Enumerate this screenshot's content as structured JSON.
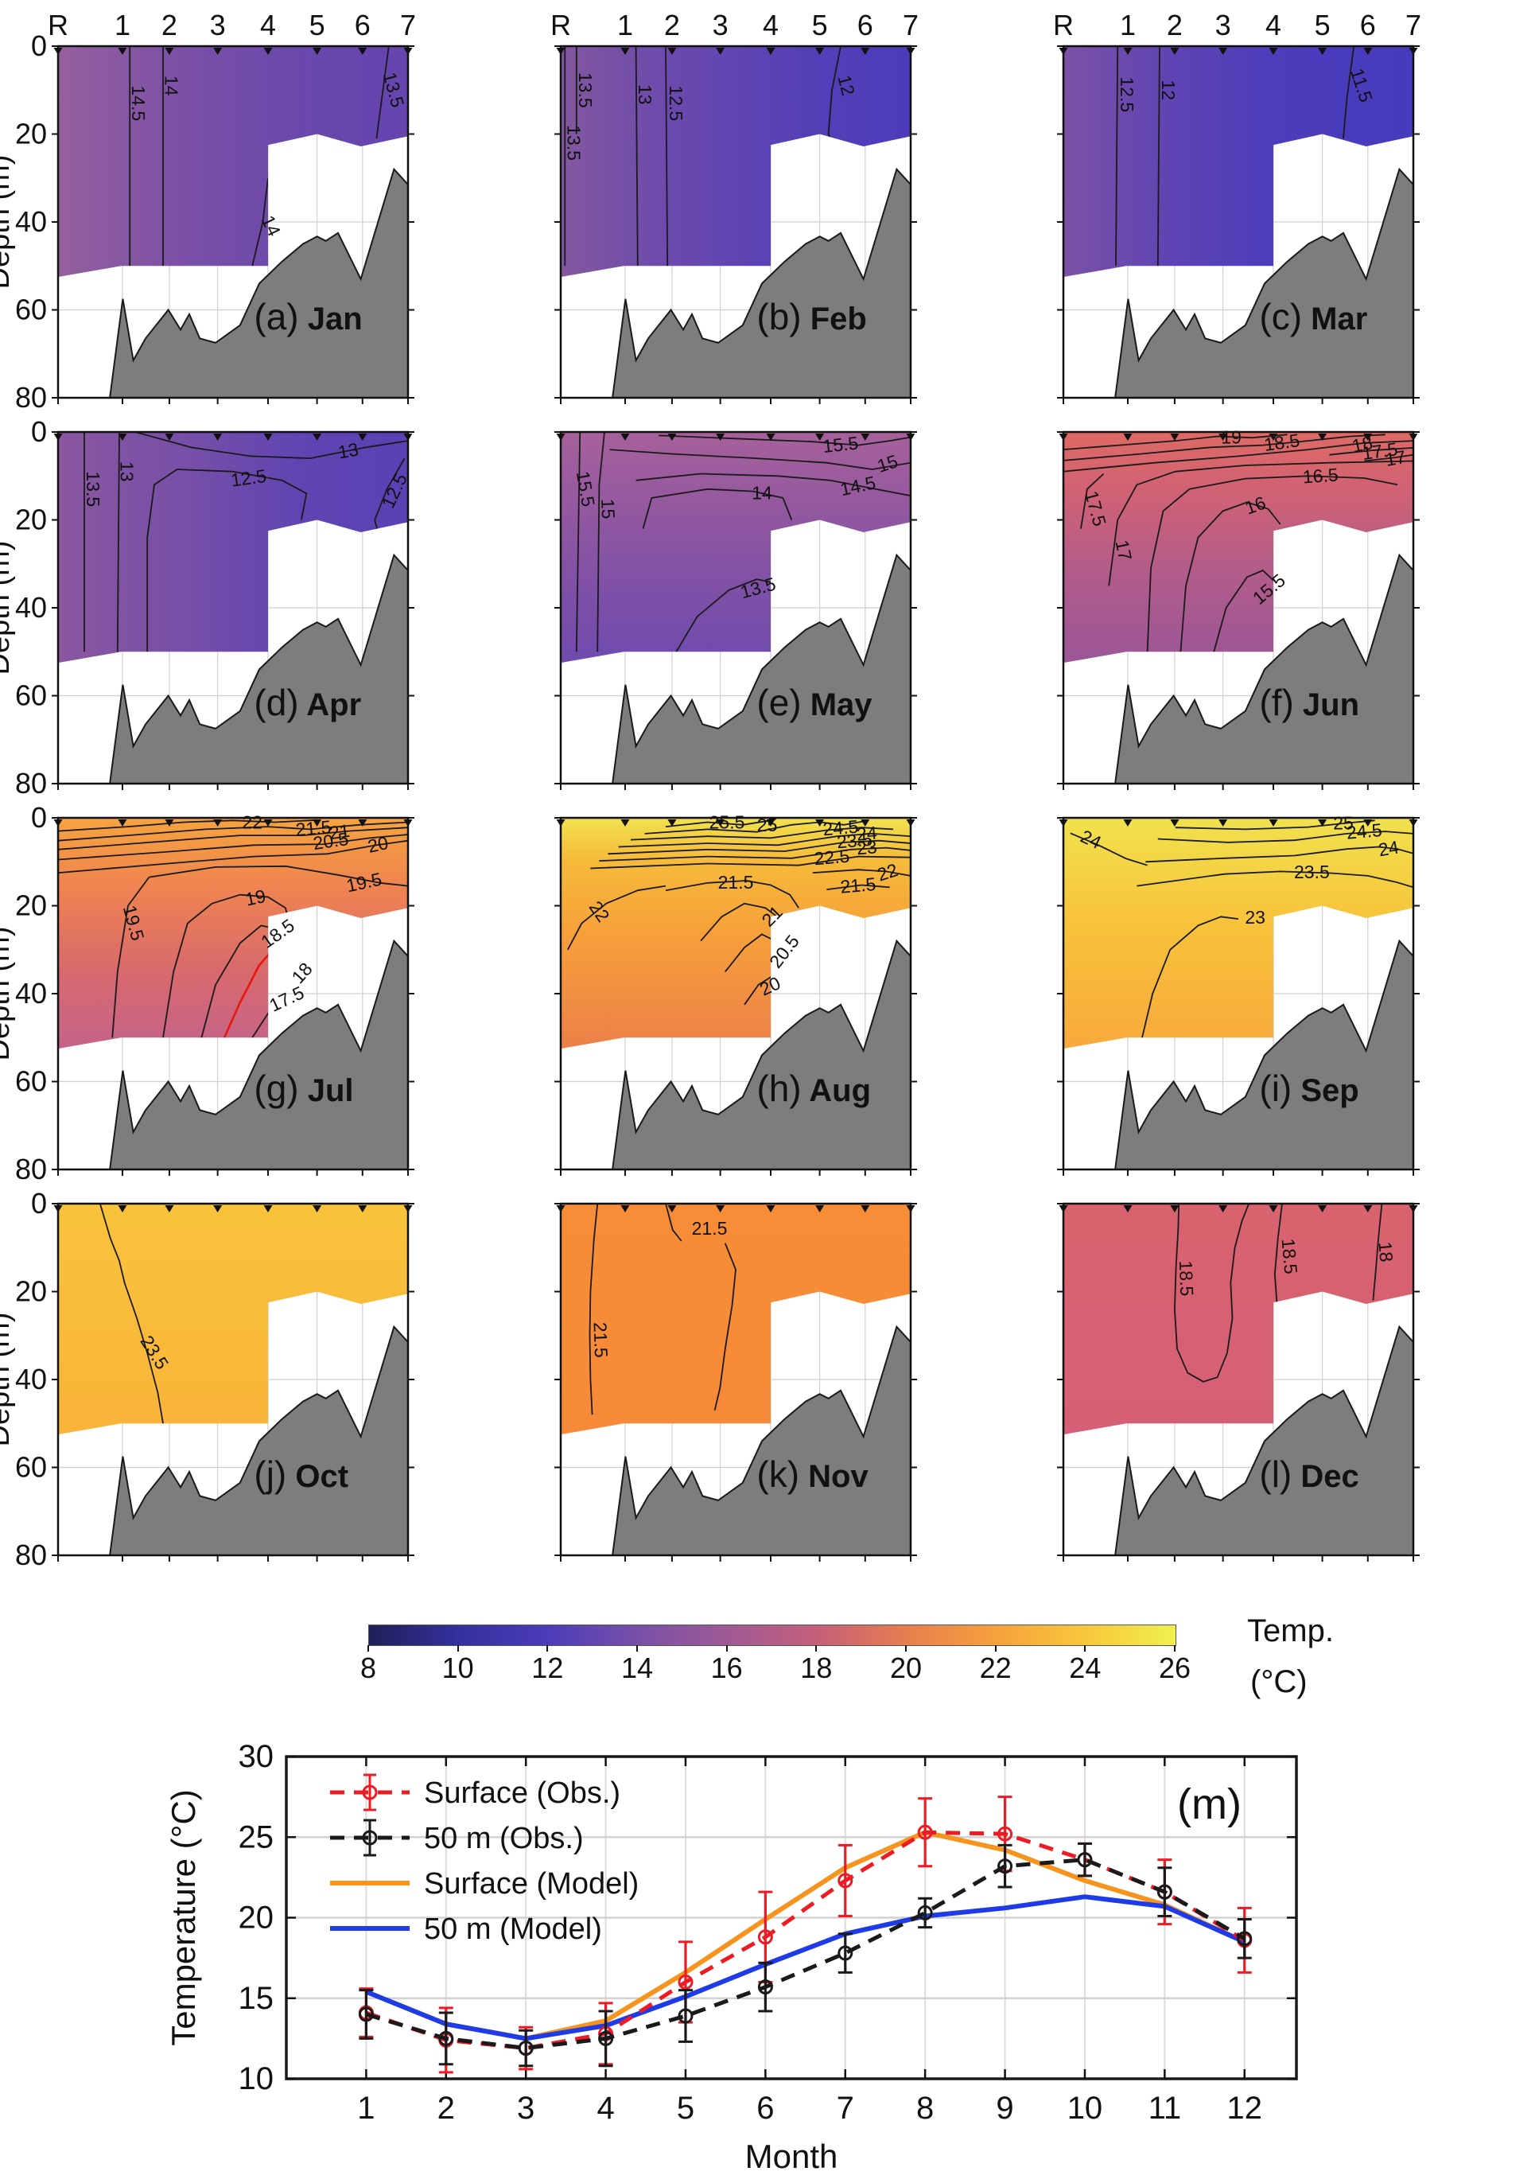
{
  "stations": [
    "R",
    "1",
    "2",
    "3",
    "4",
    "5",
    "6",
    "7"
  ],
  "depth_axis": {
    "label": "Depth (m)",
    "ticks": [
      "0",
      "20",
      "40",
      "60",
      "80"
    ]
  },
  "panels": [
    {
      "id": "(a)",
      "month": "Jan",
      "contours": [
        "14.5",
        "14",
        "13.5",
        "14"
      ],
      "fill": {
        "dir": "h",
        "stops": [
          [
            0,
            "#95609c"
          ],
          [
            0.35,
            "#7b50a6"
          ],
          [
            0.75,
            "#6847ac"
          ],
          [
            1,
            "#6546af"
          ]
        ]
      }
    },
    {
      "id": "(b)",
      "month": "Feb",
      "contours": [
        "13.5",
        "13.5",
        "13",
        "12.5",
        "12"
      ],
      "fill": {
        "dir": "h",
        "stops": [
          [
            0,
            "#83589f"
          ],
          [
            0.3,
            "#6c4aad"
          ],
          [
            0.7,
            "#5440b6"
          ],
          [
            1,
            "#4b3cba"
          ]
        ]
      }
    },
    {
      "id": "(c)",
      "month": "Mar",
      "contours": [
        "12.5",
        "12",
        "11.5"
      ],
      "fill": {
        "dir": "h",
        "stops": [
          [
            0,
            "#7b52a5"
          ],
          [
            0.3,
            "#5f44b3"
          ],
          [
            0.6,
            "#4c3dba"
          ],
          [
            1,
            "#463bbd"
          ]
        ]
      }
    },
    {
      "id": "(d)",
      "month": "Apr",
      "contours": [
        "13.5",
        "13",
        "13",
        "12.5",
        "12.5"
      ],
      "fill": {
        "dir": "h",
        "stops": [
          [
            0,
            "#8a57a0"
          ],
          [
            0.35,
            "#7750a7"
          ],
          [
            0.7,
            "#5f44b2"
          ],
          [
            1,
            "#5a42b4"
          ]
        ]
      }
    },
    {
      "id": "(e)",
      "month": "May",
      "contours": [
        "15.5",
        "15",
        "15.5",
        "15",
        "14.5",
        "14",
        "13.5"
      ],
      "fill": {
        "dir": "v",
        "stops": [
          [
            0,
            "#a6619a"
          ],
          [
            0.3,
            "#95599f"
          ],
          [
            0.7,
            "#7d50a7"
          ],
          [
            1,
            "#6f4bae"
          ]
        ]
      }
    },
    {
      "id": "(f)",
      "month": "Jun",
      "contours": [
        "19",
        "18.5",
        "18",
        "17.5",
        "17",
        "17.5",
        "17",
        "16.5",
        "16",
        "15.5"
      ],
      "fill": {
        "dir": "v",
        "stops": [
          [
            0,
            "#de6a65"
          ],
          [
            0.25,
            "#d16274"
          ],
          [
            0.6,
            "#b25c89"
          ],
          [
            1,
            "#9b5697"
          ]
        ]
      }
    },
    {
      "id": "(g)",
      "month": "Jul",
      "contours": [
        "22",
        "21.5",
        "21",
        "20.5",
        "20",
        "19.5",
        "19.5",
        "19",
        "18.5",
        "18",
        "17.5"
      ],
      "fill": {
        "dir": "v",
        "stops": [
          [
            0,
            "#f6a43e"
          ],
          [
            0.3,
            "#ef8450"
          ],
          [
            0.65,
            "#d96a6c"
          ],
          [
            1,
            "#c4638a"
          ]
        ]
      }
    },
    {
      "id": "(h)",
      "month": "Aug",
      "contours": [
        "25.5",
        "25",
        "24.5",
        "24",
        "23.5",
        "23",
        "22.5",
        "22",
        "21.5",
        "21.5",
        "22",
        "21",
        "20.5",
        "20"
      ],
      "fill": {
        "dir": "v",
        "stops": [
          [
            0,
            "#f1e24e"
          ],
          [
            0.18,
            "#f6bb3a"
          ],
          [
            0.5,
            "#f7a03a"
          ],
          [
            1,
            "#ec8048"
          ]
        ]
      }
    },
    {
      "id": "(i)",
      "month": "Sep",
      "contours": [
        "24",
        "25",
        "24.5",
        "24",
        "23.5",
        "23"
      ],
      "fill": {
        "dir": "v",
        "stops": [
          [
            0,
            "#f0e24d"
          ],
          [
            0.45,
            "#f8c33a"
          ],
          [
            1,
            "#f8a93c"
          ]
        ]
      }
    },
    {
      "id": "(j)",
      "month": "Oct",
      "contours": [
        "23.5"
      ],
      "fill": {
        "dir": "v",
        "stops": [
          [
            0,
            "#f9c33b"
          ],
          [
            1,
            "#f9b43a"
          ]
        ]
      }
    },
    {
      "id": "(k)",
      "month": "Nov",
      "contours": [
        "21.5",
        "21.5"
      ],
      "fill": {
        "dir": "v",
        "stops": [
          [
            0,
            "#f78d37"
          ],
          [
            1,
            "#f78a38"
          ]
        ]
      }
    },
    {
      "id": "(l)",
      "month": "Dec",
      "contours": [
        "18.5",
        "18.5",
        "18"
      ],
      "fill": {
        "dir": "v",
        "stops": [
          [
            0,
            "#d8626d"
          ],
          [
            1,
            "#d56077"
          ]
        ]
      }
    }
  ],
  "colorbar": {
    "title_line1": "Temp.",
    "title_line2": "(°C)",
    "ticks": [
      "8",
      "10",
      "12",
      "14",
      "16",
      "18",
      "20",
      "22",
      "24",
      "26"
    ],
    "gradient": [
      [
        0,
        "#201f57"
      ],
      [
        0.11,
        "#34309d"
      ],
      [
        0.22,
        "#4b3cb9"
      ],
      [
        0.33,
        "#7650a8"
      ],
      [
        0.44,
        "#9d5a95"
      ],
      [
        0.56,
        "#c66079"
      ],
      [
        0.67,
        "#e87f4e"
      ],
      [
        0.78,
        "#f6a23c"
      ],
      [
        0.89,
        "#f8c83c"
      ],
      [
        1,
        "#eff04e"
      ]
    ]
  },
  "chart_data": {
    "type": "line",
    "title": "(m)",
    "xlabel": "Month",
    "ylabel": "Temperature (°C)",
    "xlim": [
      0,
      12.65
    ],
    "ylim": [
      10,
      30
    ],
    "xticks": [
      1,
      2,
      3,
      4,
      5,
      6,
      7,
      8,
      9,
      10,
      11,
      12
    ],
    "yticks": [
      10,
      15,
      20,
      25,
      30
    ],
    "grid": true,
    "legend_position": "top-left",
    "months": [
      1,
      2,
      3,
      4,
      5,
      6,
      7,
      8,
      9,
      10,
      11,
      12
    ],
    "series": [
      {
        "name": "Surface (Obs.)",
        "color": "#ed1c24",
        "style": "dashed",
        "marker": "circle",
        "values": [
          14.1,
          12.4,
          11.9,
          12.8,
          16.0,
          18.8,
          22.3,
          25.3,
          25.2,
          23.6,
          21.6,
          18.6
        ],
        "errors": [
          1.5,
          2.0,
          1.3,
          1.9,
          2.5,
          2.8,
          2.2,
          2.1,
          2.3,
          1.0,
          2.0,
          2.0
        ]
      },
      {
        "name": "50 m (Obs.)",
        "color": "#1a1a1a",
        "style": "dashed",
        "marker": "circle",
        "values": [
          14.0,
          12.5,
          11.9,
          12.5,
          13.9,
          15.7,
          17.8,
          20.3,
          23.2,
          23.6,
          21.6,
          18.7
        ],
        "errors": [
          1.5,
          1.6,
          1.1,
          1.7,
          1.6,
          1.5,
          1.2,
          0.9,
          1.3,
          1.0,
          1.5,
          1.2
        ]
      },
      {
        "name": "Surface (Model)",
        "color": "#f7941d",
        "style": "solid",
        "values": [
          15.4,
          13.4,
          12.5,
          13.6,
          16.6,
          19.9,
          23.1,
          25.3,
          24.2,
          22.3,
          20.8,
          18.5
        ]
      },
      {
        "name": "50 m (Model)",
        "color": "#1f3be8",
        "style": "solid",
        "values": [
          15.4,
          13.4,
          12.5,
          13.3,
          15.1,
          17.1,
          19.0,
          20.1,
          20.6,
          21.3,
          20.7,
          18.5
        ]
      }
    ]
  }
}
